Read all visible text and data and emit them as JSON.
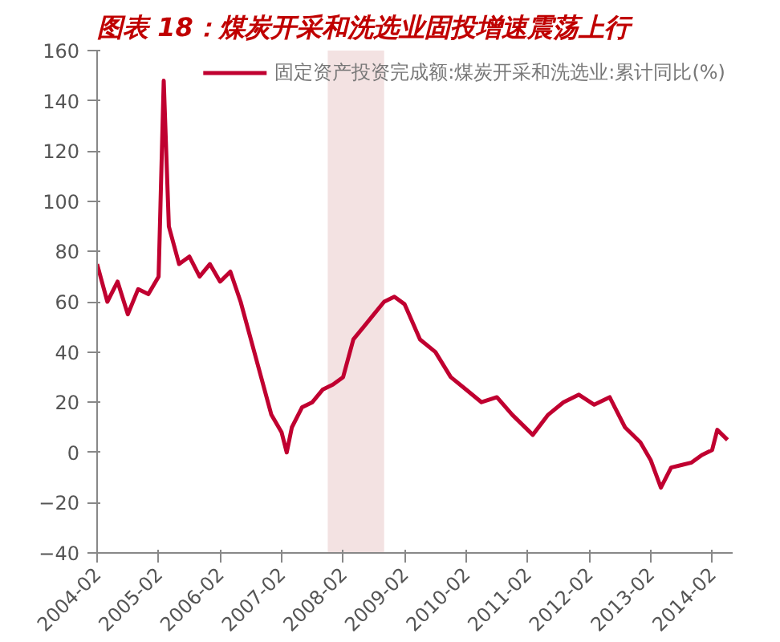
{
  "chart_data": {
    "type": "line",
    "title": "图表 18：煤炭开采和洗选业固投增速震荡上行",
    "x": [
      "2004-02",
      "2004-04",
      "2004-06",
      "2004-08",
      "2004-10",
      "2004-12",
      "2005-02",
      "2005-03",
      "2005-04",
      "2005-06",
      "2005-08",
      "2005-10",
      "2005-12",
      "2006-02",
      "2006-04",
      "2006-06",
      "2006-08",
      "2006-10",
      "2006-12",
      "2007-02",
      "2007-03",
      "2007-04",
      "2007-06",
      "2007-08",
      "2007-10",
      "2007-12",
      "2008-02",
      "2008-04",
      "2008-06",
      "2008-08",
      "2008-10",
      "2008-12",
      "2009-02",
      "2009-05",
      "2009-08",
      "2009-11",
      "2010-02",
      "2010-05",
      "2010-08",
      "2010-11",
      "2011-03",
      "2011-06",
      "2011-09",
      "2011-12",
      "2012-03",
      "2012-06",
      "2012-09",
      "2012-12",
      "2013-02",
      "2013-04",
      "2013-06",
      "2013-08",
      "2013-10",
      "2013-12",
      "2014-02",
      "2014-03",
      "2014-05"
    ],
    "series": [
      {
        "name": "固定资产投资完成额:煤炭开采和洗选业:累计同比(%)",
        "color": "#c00030",
        "values": [
          75,
          60,
          68,
          55,
          65,
          63,
          70,
          148,
          90,
          75,
          78,
          70,
          75,
          68,
          72,
          60,
          45,
          30,
          15,
          8,
          0,
          10,
          18,
          20,
          25,
          27,
          30,
          45,
          50,
          55,
          60,
          62,
          59,
          45,
          40,
          30,
          25,
          20,
          22,
          15,
          7,
          15,
          20,
          23,
          19,
          22,
          10,
          4,
          -3,
          -14,
          -6,
          -5,
          -4,
          -1,
          1,
          9,
          5
        ]
      }
    ],
    "xlim": [
      "2004-02",
      "2014-06"
    ],
    "xticks": [
      {
        "value": "2004-02",
        "label": "2004-02"
      },
      {
        "value": "2005-02",
        "label": "2005-02"
      },
      {
        "value": "2006-02",
        "label": "2006-02"
      },
      {
        "value": "2007-02",
        "label": "2007-02"
      },
      {
        "value": "2008-02",
        "label": "2008-02"
      },
      {
        "value": "2009-02",
        "label": "2009-02"
      },
      {
        "value": "2010-02",
        "label": "2010-02"
      },
      {
        "value": "2011-02",
        "label": "2011-02"
      },
      {
        "value": "2012-02",
        "label": "2012-02"
      },
      {
        "value": "2013-02",
        "label": "2013-02"
      },
      {
        "value": "2014-02",
        "label": "2014-02"
      }
    ],
    "ylim": [
      -40,
      160
    ],
    "yticks": [
      -40,
      -20,
      0,
      20,
      40,
      60,
      80,
      100,
      120,
      140,
      160
    ],
    "bands": [
      {
        "axis": "x",
        "from": "2007-11",
        "to": "2008-10",
        "color": "#f3e2e2"
      }
    ],
    "grid": false,
    "legend": "top"
  }
}
